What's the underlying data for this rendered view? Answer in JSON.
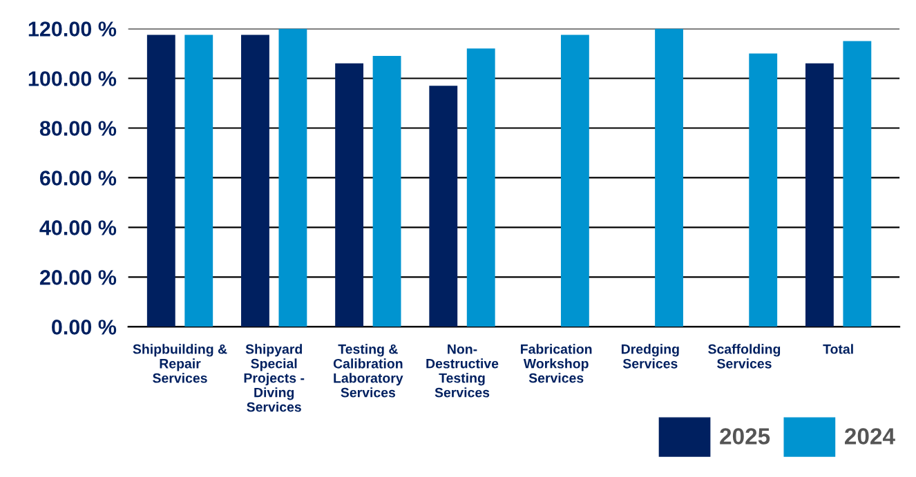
{
  "chart_data": {
    "type": "bar",
    "categories": [
      "Shipbuilding &\nRepair\nServices",
      "Shipyard\nSpecial\nProjects -\nDiving\nServices",
      "Testing &\nCalibration\nLaboratory\nServices",
      "Non-\nDestructive\nTesting\nServices",
      "Fabrication\nWorkshop\nServices",
      "Dredging\nServices",
      "Scaffolding\nServices",
      "Total"
    ],
    "series": [
      {
        "name": "2025",
        "color": "#002060",
        "values": [
          117.5,
          117.5,
          106,
          97,
          null,
          null,
          null,
          106
        ]
      },
      {
        "name": "2024",
        "color": "#0094d0",
        "values": [
          117.5,
          120,
          109,
          112,
          117.5,
          120,
          110,
          115
        ]
      }
    ],
    "ylim": [
      0,
      120
    ],
    "yticks": [
      {
        "value": 0,
        "label": "0.00 %"
      },
      {
        "value": 20,
        "label": "20.00 %"
      },
      {
        "value": 40,
        "label": "40.00 %"
      },
      {
        "value": 60,
        "label": "60.00 %"
      },
      {
        "value": 80,
        "label": "80.00 %"
      },
      {
        "value": 100,
        "label": "100.00 %"
      },
      {
        "value": 120,
        "label": "120.00 %"
      }
    ],
    "grid": "y",
    "legend": "bottom right"
  }
}
